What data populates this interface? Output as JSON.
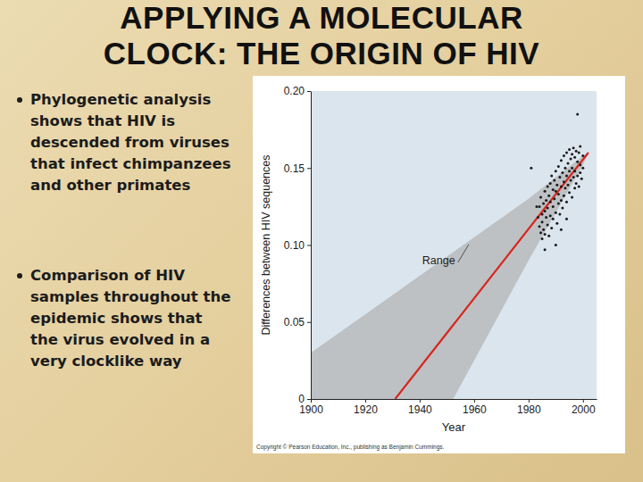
{
  "slide": {
    "title": "APPLYING A MOLECULAR CLOCK: THE ORIGIN OF HIV",
    "bullets": [
      "Phylogenetic analysis shows that HIV is descended from viruses that infect chimpanzees and other primates",
      "Comparison of HIV samples throughout the epidemic shows that the virus evolved in a very clocklike way"
    ],
    "credit": "Copyright © Pearson Education, Inc., publishing as Benjamin Cummings."
  },
  "chart_data": {
    "type": "scatter",
    "x_label": "Year",
    "y_label": "Differences between HIV sequences",
    "annotations": [
      "Range"
    ],
    "xlim": [
      1900,
      2005
    ],
    "xticks": [
      1900,
      1920,
      1940,
      1960,
      1980,
      2000
    ],
    "ylim": [
      0,
      0.2
    ],
    "yticks": [
      0,
      0.05,
      {
        "value": 0.1,
        "label": "0.10"
      },
      0.15,
      {
        "value": 0.2,
        "label": "0.20"
      }
    ],
    "grid": false,
    "series": [
      {
        "type": "scatter",
        "color": "#1a1a1a",
        "marker": "circle",
        "x": [
          1983.5,
          1984,
          1984,
          1984.5,
          1984.5,
          1985,
          1985,
          1985,
          1985.5,
          1985.5,
          1986,
          1986,
          1986,
          1986.5,
          1986.5,
          1987,
          1987,
          1987,
          1987.5,
          1987.5,
          1988,
          1988,
          1988,
          1988.5,
          1988.5,
          1989,
          1989,
          1989,
          1989.5,
          1989.5,
          1990,
          1990,
          1990,
          1990.5,
          1990.5,
          1991,
          1991,
          1991,
          1991.5,
          1991.5,
          1992,
          1992,
          1992,
          1992.5,
          1992.5,
          1993,
          1993,
          1993,
          1993.5,
          1993.5,
          1994,
          1994,
          1994,
          1994.5,
          1994.5,
          1995,
          1995,
          1995,
          1995.5,
          1995.5,
          1996,
          1996,
          1996,
          1996.5,
          1996.5,
          1997,
          1997,
          1997,
          1997.5,
          1997.5,
          1998,
          1998,
          1998,
          1998.5,
          1998.5,
          1999,
          1999,
          1999,
          1999.5,
          2000,
          2000,
          1986,
          1990,
          1981,
          1983,
          1992,
          1994
        ],
        "values": [
          0.118,
          0.125,
          0.112,
          0.108,
          0.131,
          0.104,
          0.12,
          0.115,
          0.127,
          0.11,
          0.135,
          0.122,
          0.107,
          0.118,
          0.129,
          0.138,
          0.113,
          0.124,
          0.106,
          0.132,
          0.14,
          0.119,
          0.128,
          0.111,
          0.145,
          0.136,
          0.125,
          0.117,
          0.142,
          0.13,
          0.148,
          0.121,
          0.135,
          0.114,
          0.139,
          0.151,
          0.127,
          0.133,
          0.144,
          0.12,
          0.155,
          0.138,
          0.129,
          0.147,
          0.124,
          0.158,
          0.141,
          0.132,
          0.15,
          0.137,
          0.16,
          0.145,
          0.128,
          0.153,
          0.139,
          0.162,
          0.148,
          0.134,
          0.156,
          0.142,
          0.159,
          0.131,
          0.15,
          0.163,
          0.144,
          0.157,
          0.137,
          0.148,
          0.161,
          0.14,
          0.154,
          0.145,
          0.185,
          0.16,
          0.138,
          0.152,
          0.147,
          0.164,
          0.143,
          0.158,
          0.15,
          0.097,
          0.1,
          0.15,
          0.125,
          0.11,
          0.117
        ]
      },
      {
        "type": "line",
        "color": "#d7261e",
        "line_style": "solid",
        "x": [
          1931,
          2002
        ],
        "values": [
          0,
          0.16
        ]
      },
      {
        "type": "area",
        "color": "#a8a8a8",
        "x": [
          1900,
          1920,
          1940,
          1960,
          1980,
          2000,
          2002
        ],
        "values": [
          0.03,
          0.055,
          0.08,
          0.105,
          0.13,
          0.158,
          0.16
        ],
        "lower": [
          -0.09,
          -0.065,
          -0.04,
          0.025,
          0.09,
          0.152,
          0.16
        ]
      }
    ]
  }
}
